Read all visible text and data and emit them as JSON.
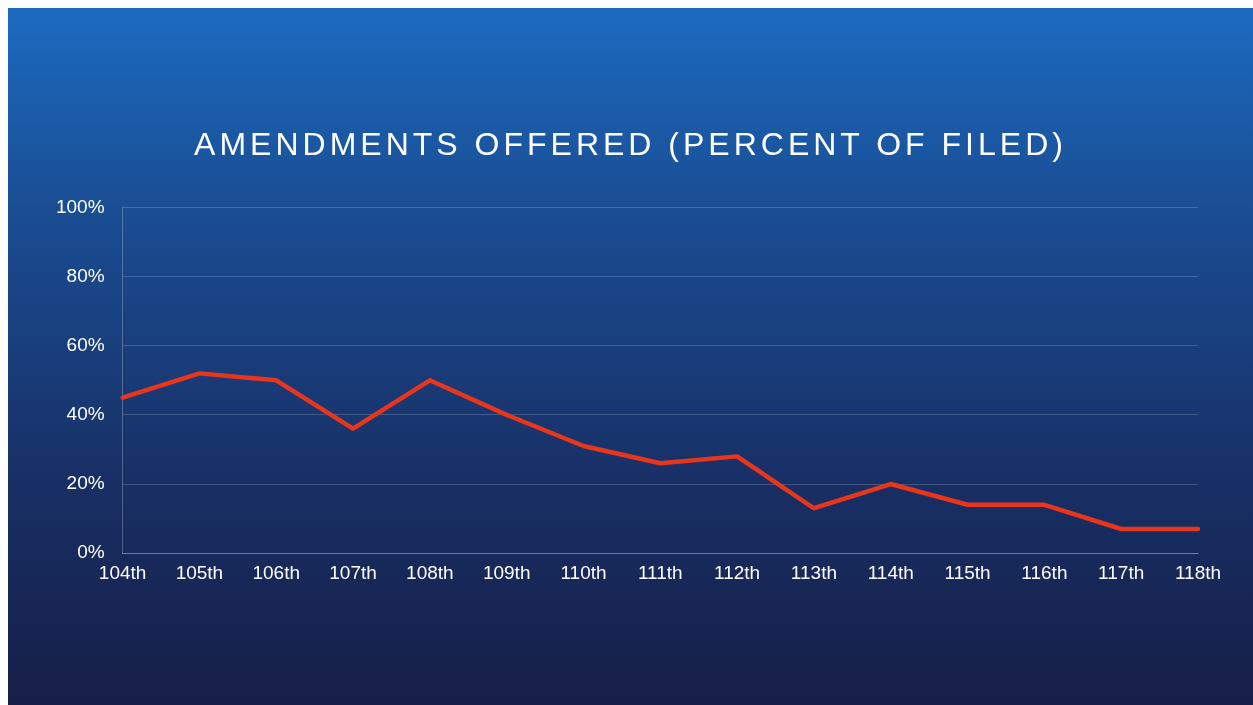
{
  "chart_data": {
    "type": "line",
    "title": "AMENDMENTS OFFERED (PERCENT OF FILED)",
    "categories": [
      "104th",
      "105th",
      "106th",
      "107th",
      "108th",
      "109th",
      "110th",
      "111th",
      "112th",
      "113th",
      "114th",
      "115th",
      "116th",
      "117th",
      "118th"
    ],
    "series": [
      {
        "color": "#e8361c",
        "values": [
          45,
          52,
          50,
          36,
          50,
          40,
          31,
          26,
          28,
          13,
          20,
          14,
          14,
          7,
          7
        ]
      }
    ],
    "ylim": [
      0,
      100
    ],
    "yticks": [
      {
        "value": 0,
        "label": "0%"
      },
      {
        "value": 20,
        "label": "20%"
      },
      {
        "value": 40,
        "label": "40%"
      },
      {
        "value": 60,
        "label": "60%"
      },
      {
        "value": 80,
        "label": "80%"
      },
      {
        "value": 100,
        "label": "100%"
      }
    ],
    "grid": "y",
    "legend": false,
    "marker": "none",
    "line_style": "solid"
  }
}
